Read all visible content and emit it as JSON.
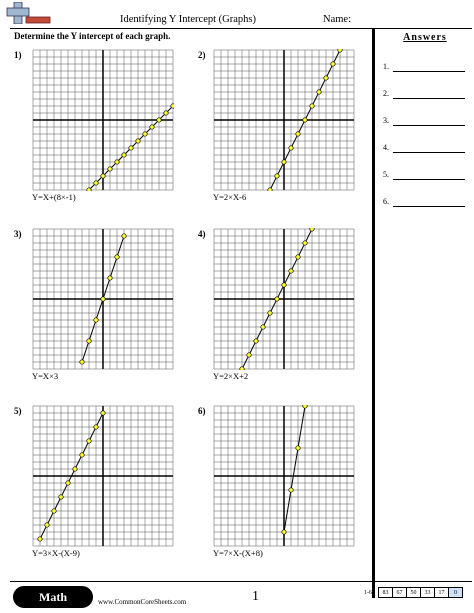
{
  "header": {
    "title": "Identifying Y Intercept (Graphs)",
    "name_label": "Name:"
  },
  "instructions": "Determine the Y intercept of each graph.",
  "answers": {
    "title": "Answers",
    "items": [
      "1.",
      "2.",
      "3.",
      "4.",
      "5.",
      "6."
    ]
  },
  "problems": [
    {
      "num": "1)",
      "equation": "Y=X+(8×-1)",
      "slope": 1,
      "intercept": -8
    },
    {
      "num": "2)",
      "equation": "Y=2×X-6",
      "slope": 2,
      "intercept": -6
    },
    {
      "num": "3)",
      "equation": "Y=X×3",
      "slope": 3,
      "intercept": 0
    },
    {
      "num": "4)",
      "equation": "Y=2×X+2",
      "slope": 2,
      "intercept": 2
    },
    {
      "num": "5)",
      "equation": "Y=3×X-(X-9)",
      "slope": 2,
      "intercept": 9
    },
    {
      "num": "6)",
      "equation": "Y=7×X-(X+8)",
      "slope": 6,
      "intercept": -8
    }
  ],
  "grid": {
    "xmin": -10,
    "xmax": 10,
    "ymin": -10,
    "ymax": 10
  },
  "colors": {
    "point_fill": "#ffff33",
    "grid_line": "#555555"
  },
  "footer": {
    "badge": "Math",
    "site": "www.CommonCoreSheets.com",
    "page": "1",
    "score_label": "1-6",
    "scores": [
      "83",
      "67",
      "50",
      "33",
      "17",
      "0"
    ]
  }
}
